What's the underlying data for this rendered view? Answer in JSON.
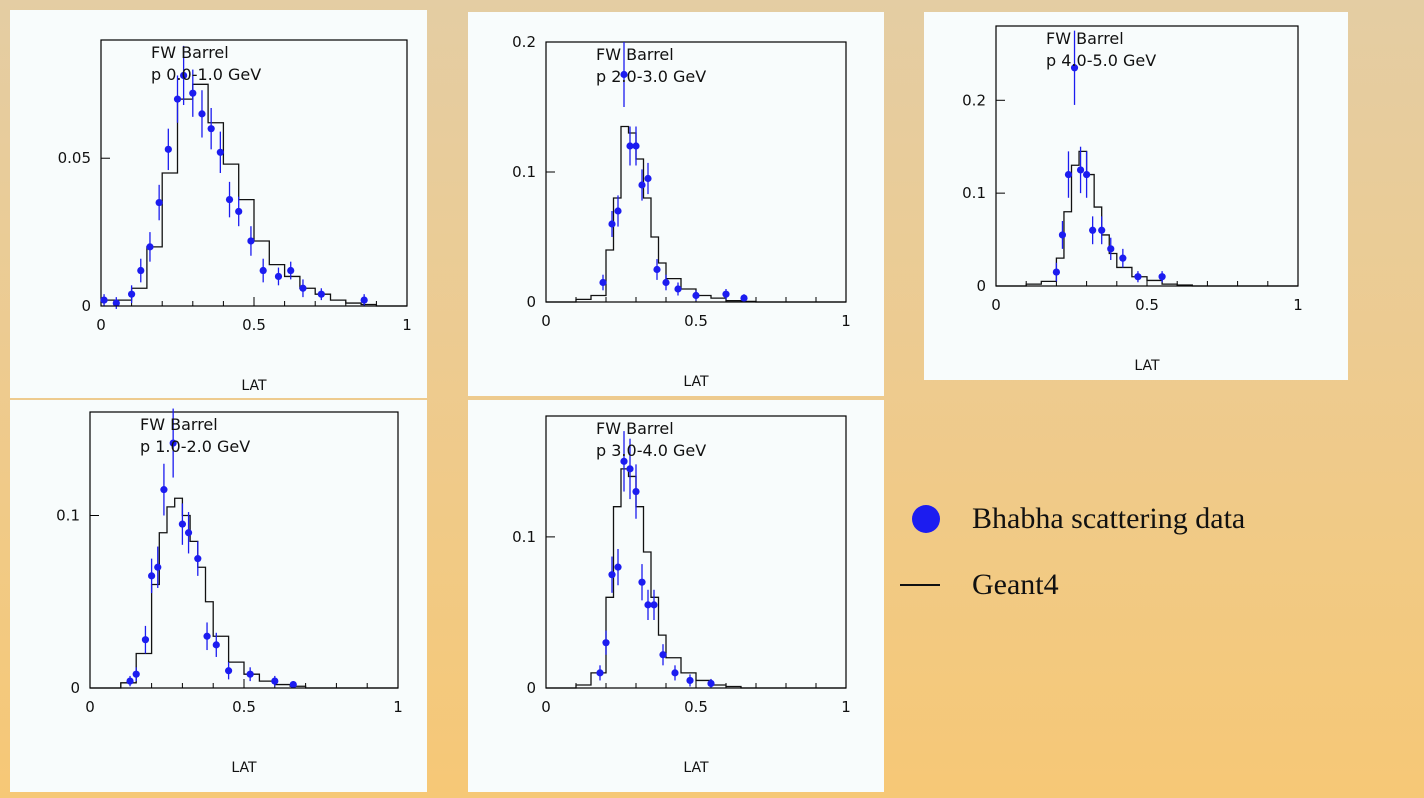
{
  "legend": {
    "data_label": "Bhabha scattering data",
    "mc_label": "Geant4"
  },
  "chart_data": [
    {
      "type": "histogram",
      "xlabel": "LAT",
      "annotation": [
        "FW Barrel",
        "p 0.0-1.0 GeV"
      ],
      "xlim": [
        0,
        1
      ],
      "ylim": [
        0,
        0.09
      ],
      "xticks": [
        0,
        0.5,
        1
      ],
      "xtick_labels": [
        "0",
        "0.5",
        "1"
      ],
      "yticks": [
        0,
        0.05
      ],
      "ytick_labels": [
        "0",
        "0.05"
      ],
      "geant4": {
        "edges": [
          0.0,
          0.05,
          0.1,
          0.15,
          0.2,
          0.25,
          0.3,
          0.35,
          0.4,
          0.45,
          0.5,
          0.55,
          0.6,
          0.65,
          0.7,
          0.75,
          0.8,
          0.85,
          0.9,
          0.95,
          1.0
        ],
        "values": [
          0.002,
          0.002,
          0.006,
          0.02,
          0.045,
          0.07,
          0.075,
          0.062,
          0.048,
          0.036,
          0.022,
          0.014,
          0.01,
          0.006,
          0.004,
          0.002,
          0.001,
          0.0005,
          0.0,
          0.0
        ]
      },
      "data": [
        {
          "x": 0.01,
          "y": 0.002,
          "err": 0.002
        },
        {
          "x": 0.05,
          "y": 0.001,
          "err": 0.002
        },
        {
          "x": 0.1,
          "y": 0.004,
          "err": 0.003
        },
        {
          "x": 0.13,
          "y": 0.012,
          "err": 0.004
        },
        {
          "x": 0.16,
          "y": 0.02,
          "err": 0.005
        },
        {
          "x": 0.19,
          "y": 0.035,
          "err": 0.006
        },
        {
          "x": 0.22,
          "y": 0.053,
          "err": 0.007
        },
        {
          "x": 0.25,
          "y": 0.07,
          "err": 0.008
        },
        {
          "x": 0.27,
          "y": 0.078,
          "err": 0.01
        },
        {
          "x": 0.3,
          "y": 0.072,
          "err": 0.008
        },
        {
          "x": 0.33,
          "y": 0.065,
          "err": 0.008
        },
        {
          "x": 0.36,
          "y": 0.06,
          "err": 0.007
        },
        {
          "x": 0.39,
          "y": 0.052,
          "err": 0.007
        },
        {
          "x": 0.42,
          "y": 0.036,
          "err": 0.006
        },
        {
          "x": 0.45,
          "y": 0.032,
          "err": 0.005
        },
        {
          "x": 0.49,
          "y": 0.022,
          "err": 0.005
        },
        {
          "x": 0.53,
          "y": 0.012,
          "err": 0.004
        },
        {
          "x": 0.58,
          "y": 0.01,
          "err": 0.003
        },
        {
          "x": 0.62,
          "y": 0.012,
          "err": 0.003
        },
        {
          "x": 0.66,
          "y": 0.006,
          "err": 0.003
        },
        {
          "x": 0.72,
          "y": 0.004,
          "err": 0.002
        },
        {
          "x": 0.86,
          "y": 0.002,
          "err": 0.002
        }
      ]
    },
    {
      "type": "histogram",
      "xlabel": "LAT",
      "annotation": [
        "FW Barrel",
        "p 2.0-3.0 GeV"
      ],
      "xlim": [
        0,
        1
      ],
      "ylim": [
        0,
        0.2
      ],
      "xticks": [
        0,
        0.5,
        1
      ],
      "xtick_labels": [
        "0",
        "0.5",
        "1"
      ],
      "yticks": [
        0,
        0.1,
        0.2
      ],
      "ytick_labels": [
        "0",
        "0.1",
        "0.2"
      ],
      "geant4": {
        "edges": [
          0.0,
          0.05,
          0.1,
          0.15,
          0.2,
          0.225,
          0.25,
          0.275,
          0.3,
          0.325,
          0.35,
          0.375,
          0.4,
          0.45,
          0.5,
          0.55,
          0.6,
          0.65,
          0.7,
          0.8,
          1.0
        ],
        "values": [
          0.0,
          0.0,
          0.002,
          0.005,
          0.04,
          0.08,
          0.135,
          0.13,
          0.11,
          0.08,
          0.05,
          0.03,
          0.018,
          0.01,
          0.005,
          0.003,
          0.001,
          0.0005,
          0.0,
          0.0
        ]
      },
      "data": [
        {
          "x": 0.19,
          "y": 0.015,
          "err": 0.006
        },
        {
          "x": 0.22,
          "y": 0.06,
          "err": 0.01
        },
        {
          "x": 0.24,
          "y": 0.07,
          "err": 0.012
        },
        {
          "x": 0.26,
          "y": 0.175,
          "err": 0.025
        },
        {
          "x": 0.28,
          "y": 0.12,
          "err": 0.015
        },
        {
          "x": 0.3,
          "y": 0.12,
          "err": 0.015
        },
        {
          "x": 0.32,
          "y": 0.09,
          "err": 0.012
        },
        {
          "x": 0.34,
          "y": 0.095,
          "err": 0.012
        },
        {
          "x": 0.37,
          "y": 0.025,
          "err": 0.008
        },
        {
          "x": 0.4,
          "y": 0.015,
          "err": 0.006
        },
        {
          "x": 0.44,
          "y": 0.01,
          "err": 0.005
        },
        {
          "x": 0.5,
          "y": 0.005,
          "err": 0.004
        },
        {
          "x": 0.6,
          "y": 0.006,
          "err": 0.004
        },
        {
          "x": 0.66,
          "y": 0.003,
          "err": 0.003
        }
      ]
    },
    {
      "type": "histogram",
      "xlabel": "LAT",
      "annotation": [
        "FW Barrel",
        "p 4.0-5.0 GeV"
      ],
      "xlim": [
        0,
        1
      ],
      "ylim": [
        0,
        0.28
      ],
      "xticks": [
        0,
        0.5,
        1
      ],
      "xtick_labels": [
        "0",
        "0.5",
        "1"
      ],
      "yticks": [
        0,
        0.1,
        0.2
      ],
      "ytick_labels": [
        "0",
        "0.1",
        "0.2"
      ],
      "geant4": {
        "edges": [
          0.0,
          0.05,
          0.1,
          0.15,
          0.2,
          0.225,
          0.25,
          0.275,
          0.3,
          0.325,
          0.35,
          0.375,
          0.4,
          0.45,
          0.5,
          0.55,
          0.6,
          0.65,
          0.7,
          0.8,
          1.0
        ],
        "values": [
          0.0,
          0.0,
          0.002,
          0.005,
          0.03,
          0.08,
          0.13,
          0.145,
          0.12,
          0.085,
          0.055,
          0.035,
          0.02,
          0.01,
          0.006,
          0.002,
          0.001,
          0.0,
          0.0,
          0.0
        ]
      },
      "data": [
        {
          "x": 0.2,
          "y": 0.015,
          "err": 0.01
        },
        {
          "x": 0.22,
          "y": 0.055,
          "err": 0.015
        },
        {
          "x": 0.24,
          "y": 0.12,
          "err": 0.025
        },
        {
          "x": 0.26,
          "y": 0.235,
          "err": 0.04
        },
        {
          "x": 0.28,
          "y": 0.125,
          "err": 0.025
        },
        {
          "x": 0.3,
          "y": 0.12,
          "err": 0.025
        },
        {
          "x": 0.32,
          "y": 0.06,
          "err": 0.015
        },
        {
          "x": 0.35,
          "y": 0.06,
          "err": 0.015
        },
        {
          "x": 0.38,
          "y": 0.04,
          "err": 0.012
        },
        {
          "x": 0.42,
          "y": 0.03,
          "err": 0.01
        },
        {
          "x": 0.47,
          "y": 0.01,
          "err": 0.006
        },
        {
          "x": 0.55,
          "y": 0.01,
          "err": 0.006
        }
      ]
    },
    {
      "type": "histogram",
      "xlabel": "LAT",
      "annotation": [
        "FW Barrel",
        "p 1.0-2.0 GeV"
      ],
      "xlim": [
        0,
        1
      ],
      "ylim": [
        0,
        0.16
      ],
      "xticks": [
        0,
        0.5,
        1
      ],
      "xtick_labels": [
        "0",
        "0.5",
        "1"
      ],
      "yticks": [
        0,
        0.1
      ],
      "ytick_labels": [
        "0",
        "0.1"
      ],
      "geant4": {
        "edges": [
          0.0,
          0.05,
          0.1,
          0.15,
          0.2,
          0.225,
          0.25,
          0.275,
          0.3,
          0.325,
          0.35,
          0.375,
          0.4,
          0.45,
          0.5,
          0.55,
          0.6,
          0.65,
          0.7,
          0.8,
          1.0
        ],
        "values": [
          0.0,
          0.0,
          0.003,
          0.02,
          0.06,
          0.09,
          0.105,
          0.11,
          0.1,
          0.085,
          0.07,
          0.05,
          0.03,
          0.015,
          0.008,
          0.004,
          0.002,
          0.001,
          0.0,
          0.0
        ]
      },
      "data": [
        {
          "x": 0.13,
          "y": 0.004,
          "err": 0.003
        },
        {
          "x": 0.15,
          "y": 0.008,
          "err": 0.004
        },
        {
          "x": 0.18,
          "y": 0.028,
          "err": 0.008
        },
        {
          "x": 0.2,
          "y": 0.065,
          "err": 0.01
        },
        {
          "x": 0.22,
          "y": 0.07,
          "err": 0.012
        },
        {
          "x": 0.24,
          "y": 0.115,
          "err": 0.015
        },
        {
          "x": 0.27,
          "y": 0.142,
          "err": 0.02
        },
        {
          "x": 0.3,
          "y": 0.095,
          "err": 0.012
        },
        {
          "x": 0.32,
          "y": 0.09,
          "err": 0.012
        },
        {
          "x": 0.35,
          "y": 0.075,
          "err": 0.01
        },
        {
          "x": 0.38,
          "y": 0.03,
          "err": 0.008
        },
        {
          "x": 0.41,
          "y": 0.025,
          "err": 0.007
        },
        {
          "x": 0.45,
          "y": 0.01,
          "err": 0.005
        },
        {
          "x": 0.52,
          "y": 0.008,
          "err": 0.004
        },
        {
          "x": 0.6,
          "y": 0.004,
          "err": 0.003
        },
        {
          "x": 0.66,
          "y": 0.002,
          "err": 0.002
        }
      ]
    },
    {
      "type": "histogram",
      "xlabel": "LAT",
      "annotation": [
        "FW Barrel",
        "p 3.0-4.0 GeV"
      ],
      "xlim": [
        0,
        1
      ],
      "ylim": [
        0,
        0.18
      ],
      "xticks": [
        0,
        0.5,
        1
      ],
      "xtick_labels": [
        "0",
        "0.5",
        "1"
      ],
      "yticks": [
        0,
        0.1
      ],
      "ytick_labels": [
        "0",
        "0.1"
      ],
      "geant4": {
        "edges": [
          0.0,
          0.05,
          0.1,
          0.15,
          0.2,
          0.225,
          0.25,
          0.275,
          0.3,
          0.325,
          0.35,
          0.375,
          0.4,
          0.45,
          0.5,
          0.55,
          0.6,
          0.65,
          0.7,
          0.8,
          1.0
        ],
        "values": [
          0.0,
          0.0,
          0.002,
          0.01,
          0.06,
          0.12,
          0.145,
          0.14,
          0.12,
          0.09,
          0.06,
          0.035,
          0.02,
          0.01,
          0.005,
          0.002,
          0.001,
          0.0,
          0.0,
          0.0
        ]
      },
      "data": [
        {
          "x": 0.18,
          "y": 0.01,
          "err": 0.005
        },
        {
          "x": 0.2,
          "y": 0.03,
          "err": 0.008
        },
        {
          "x": 0.22,
          "y": 0.075,
          "err": 0.012
        },
        {
          "x": 0.24,
          "y": 0.08,
          "err": 0.012
        },
        {
          "x": 0.26,
          "y": 0.15,
          "err": 0.02
        },
        {
          "x": 0.28,
          "y": 0.145,
          "err": 0.02
        },
        {
          "x": 0.3,
          "y": 0.13,
          "err": 0.018
        },
        {
          "x": 0.32,
          "y": 0.07,
          "err": 0.012
        },
        {
          "x": 0.34,
          "y": 0.055,
          "err": 0.01
        },
        {
          "x": 0.36,
          "y": 0.055,
          "err": 0.01
        },
        {
          "x": 0.39,
          "y": 0.022,
          "err": 0.007
        },
        {
          "x": 0.43,
          "y": 0.01,
          "err": 0.005
        },
        {
          "x": 0.48,
          "y": 0.005,
          "err": 0.004
        },
        {
          "x": 0.55,
          "y": 0.003,
          "err": 0.003
        }
      ]
    }
  ]
}
